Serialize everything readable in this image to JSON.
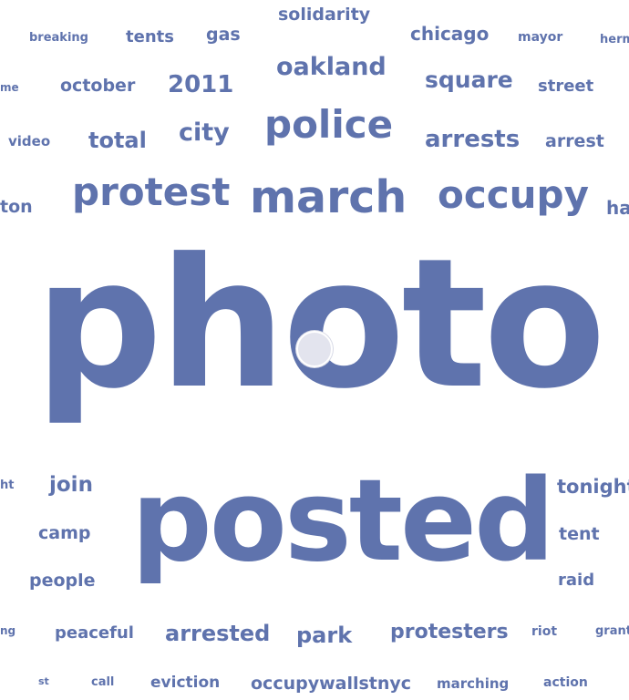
{
  "colors": {
    "word": "#5f73ad",
    "background": "#ffffff",
    "cursor": "#e3e4ee"
  },
  "words": [
    {
      "text": "solidarity",
      "weight": 2
    },
    {
      "text": "breaking",
      "weight": 1
    },
    {
      "text": "tents",
      "weight": 2
    },
    {
      "text": "gas",
      "weight": 2
    },
    {
      "text": "chicago",
      "weight": 2
    },
    {
      "text": "mayor",
      "weight": 1
    },
    {
      "text": "herm",
      "weight": 1
    },
    {
      "text": "me",
      "weight": 1
    },
    {
      "text": "october",
      "weight": 2
    },
    {
      "text": "2011",
      "weight": 3
    },
    {
      "text": "oakland",
      "weight": 3
    },
    {
      "text": "square",
      "weight": 3
    },
    {
      "text": "street",
      "weight": 2
    },
    {
      "text": "video",
      "weight": 1
    },
    {
      "text": "total",
      "weight": 3
    },
    {
      "text": "city",
      "weight": 3
    },
    {
      "text": "police",
      "weight": 5
    },
    {
      "text": "arrests",
      "weight": 3
    },
    {
      "text": "arrest",
      "weight": 2
    },
    {
      "text": "ton",
      "weight": 2
    },
    {
      "text": "protest",
      "weight": 5
    },
    {
      "text": "march",
      "weight": 6
    },
    {
      "text": "occupy",
      "weight": 5
    },
    {
      "text": "ha",
      "weight": 2
    },
    {
      "text": "photo",
      "weight": 10
    },
    {
      "text": "ht",
      "weight": 1
    },
    {
      "text": "join",
      "weight": 3
    },
    {
      "text": "tonight",
      "weight": 2
    },
    {
      "text": "camp",
      "weight": 2
    },
    {
      "text": "posted",
      "weight": 9
    },
    {
      "text": "tent",
      "weight": 2
    },
    {
      "text": "people",
      "weight": 2
    },
    {
      "text": "raid",
      "weight": 2
    },
    {
      "text": "ng",
      "weight": 1
    },
    {
      "text": "peaceful",
      "weight": 2
    },
    {
      "text": "arrested",
      "weight": 3
    },
    {
      "text": "park",
      "weight": 3
    },
    {
      "text": "protesters",
      "weight": 3
    },
    {
      "text": "riot",
      "weight": 1
    },
    {
      "text": "grant",
      "weight": 1
    },
    {
      "text": "st",
      "weight": 1
    },
    {
      "text": "call",
      "weight": 1
    },
    {
      "text": "eviction",
      "weight": 2
    },
    {
      "text": "occupywallstnyc",
      "weight": 2
    },
    {
      "text": "marching",
      "weight": 1
    },
    {
      "text": "action",
      "weight": 1
    }
  ]
}
